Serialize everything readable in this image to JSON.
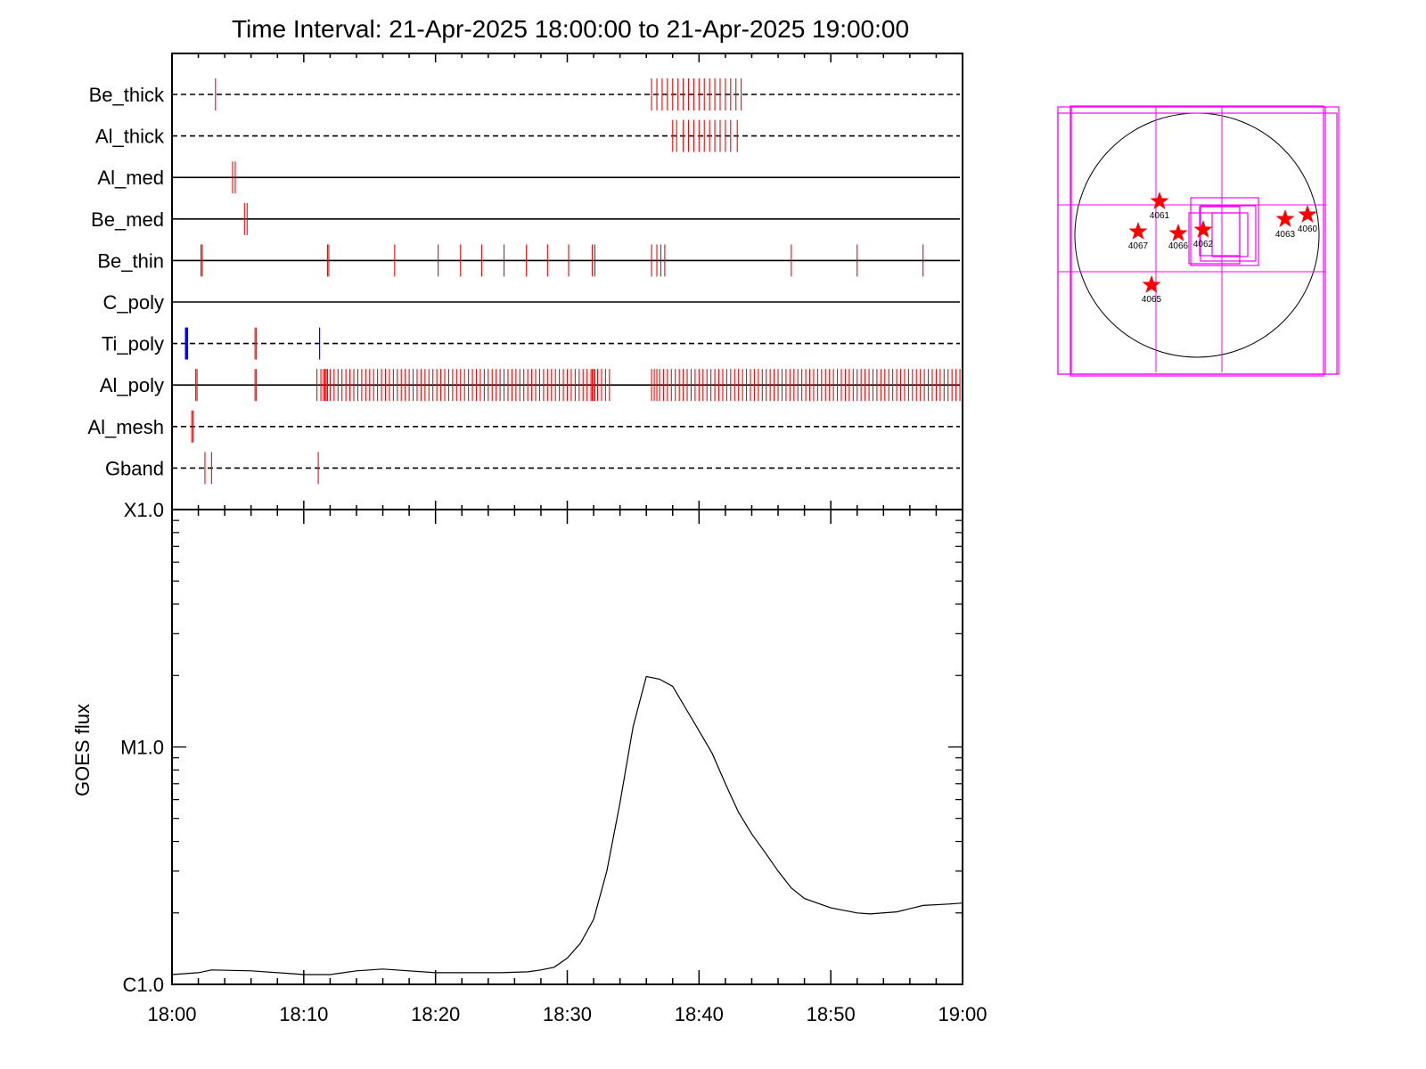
{
  "chart_data": [
    {
      "type": "event-timeline",
      "title": "Time Interval: 21-Apr-2025 18:00:00 to 21-Apr-2025 19:00:00",
      "x_range": [
        "18:00",
        "19:00"
      ],
      "channels": [
        {
          "name": "Be_thick",
          "line": "dashed",
          "red_ticks": [
            3.3,
            36.4,
            36.8,
            37.2,
            37.6,
            38.0,
            38.4,
            38.8,
            39.2,
            39.6,
            40.0,
            40.4,
            40.8,
            41.2,
            41.6,
            42.0,
            42.4,
            42.8,
            43.2
          ],
          "blue_ticks": []
        },
        {
          "name": "Al_thick",
          "line": "dashed",
          "red_ticks": [
            38.0,
            38.3,
            38.8,
            39.2,
            39.6,
            40.0,
            40.4,
            40.8,
            41.2,
            41.6,
            42.0,
            42.4,
            42.9
          ],
          "blue_ticks": []
        },
        {
          "name": "Al_med",
          "line": "solid",
          "red_ticks": [
            4.6,
            4.8
          ],
          "blue_ticks": []
        },
        {
          "name": "Be_med",
          "line": "solid",
          "red_ticks": [
            5.5,
            5.7
          ],
          "blue_ticks": []
        },
        {
          "name": "Be_thin",
          "line": "solid",
          "red_ticks": [
            2.2,
            2.3,
            11.8,
            11.9,
            16.9,
            20.2,
            21.9,
            23.5,
            25.2,
            26.9,
            28.5,
            30.1,
            31.9,
            32.1,
            36.4,
            36.8,
            37.1,
            37.4,
            47.0,
            52.0,
            57.0
          ],
          "blue_ticks": []
        },
        {
          "name": "C_poly",
          "line": "solid",
          "red_ticks": [],
          "blue_ticks": []
        },
        {
          "name": "Ti_poly",
          "line": "dashed",
          "red_ticks": [
            6.3,
            6.4
          ],
          "blue_ticks": [
            1.1,
            11.2
          ]
        },
        {
          "name": "Al_poly",
          "line": "solid",
          "red_ticks": [
            1.8,
            1.9,
            6.3,
            6.4,
            11.0,
            11.3,
            11.5,
            11.6,
            11.7,
            11.8,
            12.0,
            12.3,
            12.6,
            12.9,
            13.2,
            13.5,
            13.8,
            14.1,
            14.4,
            14.7,
            15.0,
            15.3,
            15.6,
            15.9,
            16.2,
            16.5,
            16.8,
            17.1,
            17.4,
            17.7,
            18.0,
            18.3,
            18.6,
            18.9,
            19.2,
            19.5,
            19.8,
            20.1,
            20.4,
            20.7,
            21.0,
            21.3,
            21.6,
            21.9,
            22.2,
            22.5,
            22.8,
            23.1,
            23.4,
            23.7,
            24.0,
            24.3,
            24.6,
            24.9,
            25.2,
            25.5,
            25.8,
            26.1,
            26.4,
            26.7,
            27.0,
            27.3,
            27.6,
            27.9,
            28.2,
            28.5,
            28.8,
            29.1,
            29.4,
            29.7,
            30.0,
            30.3,
            30.6,
            30.9,
            31.2,
            31.5,
            31.8,
            31.9,
            32.0,
            32.1,
            32.3,
            32.6,
            32.9,
            33.2,
            36.4,
            36.6,
            36.8,
            37.0,
            37.3,
            37.6,
            37.9,
            38.2,
            38.5,
            38.8,
            39.1,
            39.4,
            39.7,
            40.0,
            40.3,
            40.6,
            40.9,
            41.2,
            41.5,
            41.8,
            42.1,
            42.4,
            42.7,
            43.0,
            43.3,
            43.6,
            43.9,
            44.2,
            44.5,
            44.8,
            45.1,
            45.4,
            45.7,
            46.0,
            46.3,
            46.6,
            46.9,
            47.2,
            47.5,
            47.8,
            48.1,
            48.4,
            48.7,
            49.0,
            49.3,
            49.6,
            49.9,
            50.2,
            50.5,
            50.8,
            51.1,
            51.4,
            51.7,
            52.0,
            52.3,
            52.6,
            52.9,
            53.2,
            53.5,
            53.8,
            54.1,
            54.4,
            54.7,
            55.0,
            55.3,
            55.6,
            55.9,
            56.2,
            56.5,
            56.8,
            57.1,
            57.4,
            57.7,
            58.0,
            58.3,
            58.6,
            58.9,
            59.2,
            59.5,
            59.8
          ],
          "blue_ticks": []
        },
        {
          "name": "Al_mesh",
          "line": "dashed",
          "red_ticks": [
            1.5,
            1.6
          ],
          "blue_ticks": []
        },
        {
          "name": "Gband",
          "line": "dashed",
          "red_ticks": [
            2.5,
            3.0,
            11.1
          ],
          "blue_ticks": []
        }
      ]
    },
    {
      "type": "line",
      "ylabel": "GOES flux",
      "yscale": "log",
      "y_ticks": [
        "C1.0",
        "M1.0",
        "X1.0"
      ],
      "ylim": [
        1e-06,
        0.0001
      ],
      "x_ticks": [
        "18:00",
        "18:10",
        "18:20",
        "18:30",
        "18:40",
        "18:50",
        "19:00"
      ],
      "x_minutes": [
        0,
        2,
        3,
        6,
        9,
        10,
        12,
        14,
        16,
        17,
        20,
        22,
        25,
        27,
        28,
        29,
        30,
        31,
        32,
        33,
        34,
        35,
        36,
        37,
        38,
        39,
        40,
        41,
        42,
        43,
        44,
        45,
        46,
        47,
        48,
        50,
        52,
        53,
        55,
        57,
        59,
        60
      ],
      "y_flux": [
        1.1e-06,
        1.12e-06,
        1.15e-06,
        1.14e-06,
        1.11e-06,
        1.1e-06,
        1.1e-06,
        1.14e-06,
        1.16e-06,
        1.15e-06,
        1.12e-06,
        1.12e-06,
        1.12e-06,
        1.13e-06,
        1.15e-06,
        1.18e-06,
        1.29e-06,
        1.49e-06,
        1.88e-06,
        3e-06,
        5.8e-06,
        1.22e-05,
        1.98e-05,
        1.93e-05,
        1.8e-05,
        1.45e-05,
        1.17e-05,
        9.4e-06,
        7e-06,
        5.3e-06,
        4.3e-06,
        3.6e-06,
        3e-06,
        2.55e-06,
        2.3e-06,
        2.1e-06,
        2e-06,
        1.98e-06,
        2.02e-06,
        2.15e-06,
        2.18e-06,
        2.2e-06
      ]
    }
  ],
  "sun_map": {
    "flare_labels": [
      "4061",
      "4067",
      "4066",
      "4062",
      "4063",
      "4060",
      "4065"
    ]
  },
  "colors": {
    "event_red": "#ff0000",
    "event_blue": "#0000ff",
    "fov_magenta": "#ff00ff",
    "axis": "#000000"
  }
}
